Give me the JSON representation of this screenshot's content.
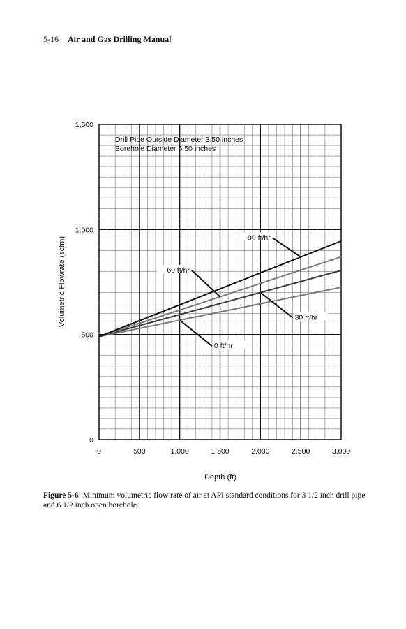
{
  "header": {
    "page_number": "5-16",
    "book_title": "Air and Gas Drilling Manual"
  },
  "chart_data": {
    "type": "line",
    "title": "",
    "xlabel": "Depth (ft)",
    "ylabel": "Volumetric Flowrate (scfm)",
    "xlim": [
      0,
      3000
    ],
    "ylim": [
      0,
      1500
    ],
    "x_ticks": [
      0,
      500,
      1000,
      1500,
      2000,
      2500,
      3000
    ],
    "x_tick_labels": [
      "0",
      "500",
      "1,000",
      "1,500",
      "2,000",
      "2,500",
      "3,000"
    ],
    "y_ticks": [
      0,
      500,
      1000,
      1500
    ],
    "y_tick_labels": [
      "0",
      "500",
      "1,000",
      "1,500"
    ],
    "grid": true,
    "annotations": [
      "Drill Pipe Outside Diameter 3.50 inches",
      "Borehole Diameter 6.50 inches"
    ],
    "series": [
      {
        "name": "0 ft/hr",
        "color": "#7a7a7a",
        "x": [
          0,
          3000
        ],
        "y": [
          490,
          725
        ]
      },
      {
        "name": "30 ft/hr",
        "color": "#3a3a3a",
        "x": [
          0,
          3000
        ],
        "y": [
          490,
          805
        ]
      },
      {
        "name": "60 ft/hr",
        "color": "#7a7a7a",
        "x": [
          0,
          3000
        ],
        "y": [
          490,
          870
        ]
      },
      {
        "name": "90 ft/hr",
        "color": "#111111",
        "x": [
          0,
          3000
        ],
        "y": [
          490,
          945
        ]
      }
    ]
  },
  "caption": {
    "label": "Figure 5-6",
    "text": ": Minimum volumetric flow rate of air at API standard conditions for 3 1/2 inch drill pipe and 6 1/2 inch open borehole."
  }
}
